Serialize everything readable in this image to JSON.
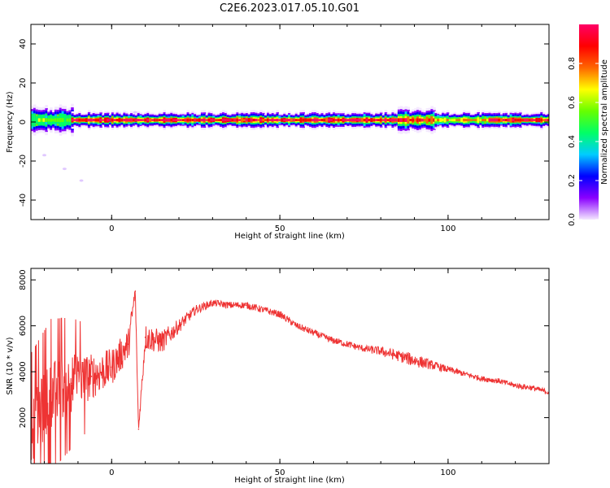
{
  "figure": {
    "title": "C2E6.2023.017.05.10.G01"
  },
  "chart_data": [
    {
      "type": "heatmap",
      "xlabel": "Height of straight line (km)",
      "ylabel": "Frequency (Hz)",
      "xlim": [
        -24,
        130
      ],
      "ylim": [
        -50,
        50
      ],
      "x_ticks": [
        0,
        50,
        100
      ],
      "y_ticks": [
        40,
        20,
        0,
        -20,
        -40
      ],
      "colorbar": {
        "label": "Normalized spectral amplitude",
        "range": [
          0,
          1
        ],
        "ticks": [
          "0.0",
          "0.2",
          "0.4",
          "0.6",
          "0.8"
        ],
        "colors": [
          "#f4e8ff",
          "#8a00ff",
          "#0000ff",
          "#00ccff",
          "#00ff66",
          "#66ff00",
          "#ffff00",
          "#ff6600",
          "#ff0000",
          "#ff0066"
        ]
      },
      "band": {
        "center_hz": 1,
        "segments": [
          {
            "x": [
              -24,
              -12
            ],
            "halfwidth_hz": 4,
            "peak": 0.55
          },
          {
            "x": [
              -12,
              85
            ],
            "halfwidth_hz": 2.5,
            "peak": 0.95
          },
          {
            "x": [
              85,
              96
            ],
            "halfwidth_hz": 3.5,
            "peak": 0.85
          },
          {
            "x": [
              96,
              112
            ],
            "halfwidth_hz": 2.5,
            "peak": 0.7
          },
          {
            "x": [
              112,
              130
            ],
            "halfwidth_hz": 2.5,
            "peak": 0.95
          }
        ],
        "scatter_points": [
          {
            "x": -20,
            "y": -17
          },
          {
            "x": -14,
            "y": -24
          },
          {
            "x": -9,
            "y": -30
          },
          {
            "x": 7,
            "y": 5
          }
        ]
      }
    },
    {
      "type": "line",
      "xlabel": "Height of straight line (km)",
      "ylabel": "SNR (10 * v/v)",
      "xlim": [
        -24,
        130
      ],
      "ylim": [
        0,
        8500
      ],
      "x_ticks": [
        0,
        50,
        100
      ],
      "y_ticks": [
        2000,
        4000,
        6000,
        8000
      ],
      "color": "#ee3333",
      "series": [
        {
          "x": [
            -24,
            -18,
            -12,
            -6,
            0,
            5,
            7,
            8,
            10,
            15,
            20,
            25,
            30,
            35,
            40,
            45,
            50,
            55,
            60,
            65,
            70,
            75,
            80,
            85,
            90,
            95,
            100,
            105,
            110,
            115,
            120,
            125,
            130
          ],
          "values": [
            1500,
            3000,
            3500,
            3800,
            4200,
            5200,
            7500,
            1500,
            5500,
            5300,
            6000,
            6700,
            7000,
            6900,
            6900,
            6700,
            6500,
            6000,
            5700,
            5400,
            5200,
            5000,
            4900,
            4700,
            4500,
            4300,
            4100,
            3900,
            3700,
            3600,
            3400,
            3300,
            3100
          ],
          "noise": [
            1500,
            1500,
            1300,
            1000,
            800,
            700,
            300,
            100,
            600,
            500,
            300,
            200,
            150,
            150,
            150,
            150,
            150,
            150,
            150,
            150,
            150,
            150,
            200,
            250,
            300,
            200,
            150,
            120,
            120,
            120,
            120,
            120,
            120
          ]
        }
      ]
    }
  ]
}
